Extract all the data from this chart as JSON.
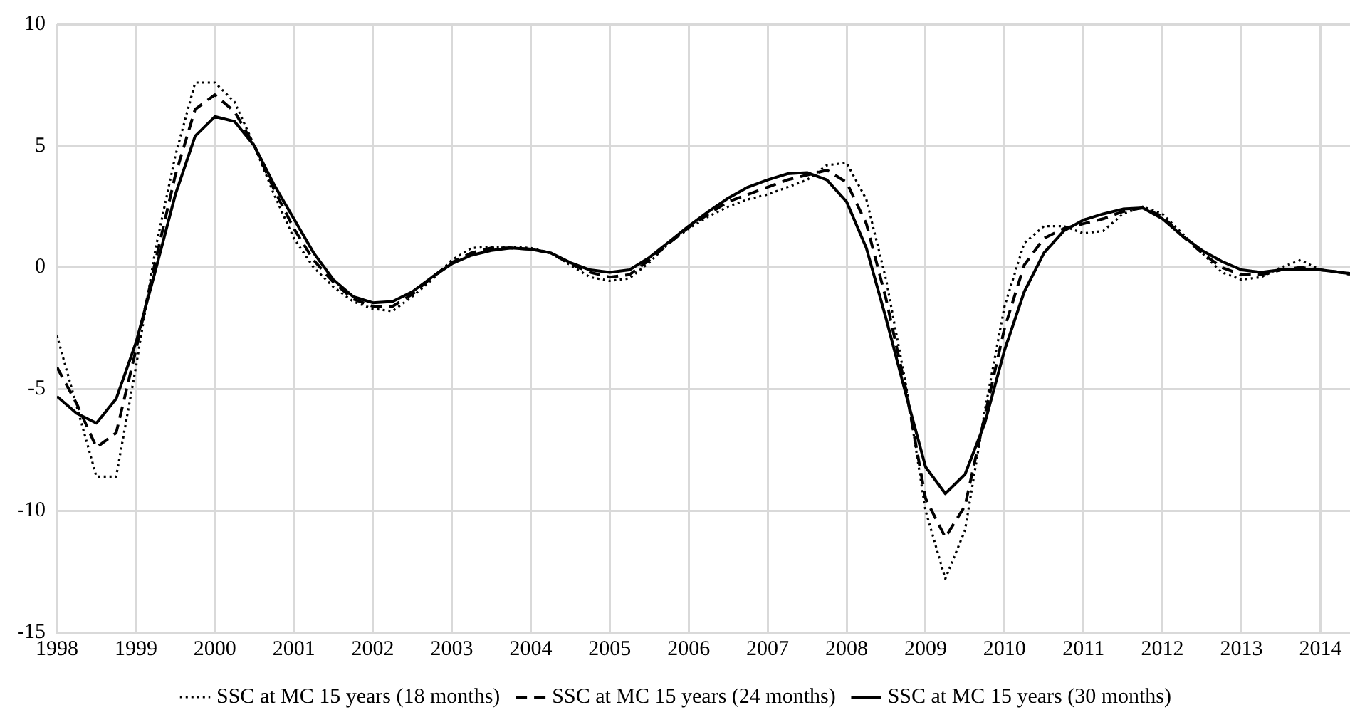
{
  "chart_data": {
    "type": "line",
    "x": [
      1998,
      1998.25,
      1998.5,
      1998.75,
      1999,
      1999.25,
      1999.5,
      1999.75,
      2000,
      2000.25,
      2000.5,
      2000.75,
      2001,
      2001.25,
      2001.5,
      2001.75,
      2002,
      2002.25,
      2002.5,
      2002.75,
      2003,
      2003.25,
      2003.5,
      2003.75,
      2004,
      2004.25,
      2004.5,
      2004.75,
      2005,
      2005.25,
      2005.5,
      2005.75,
      2006,
      2006.25,
      2006.5,
      2006.75,
      2007,
      2007.25,
      2007.5,
      2007.75,
      2008,
      2008.25,
      2008.5,
      2008.75,
      2009,
      2009.25,
      2009.5,
      2009.75,
      2010,
      2010.25,
      2010.5,
      2010.75,
      2011,
      2011.25,
      2011.5,
      2011.75,
      2012,
      2012.25,
      2012.5,
      2012.75,
      2013,
      2013.25,
      2013.5,
      2013.75,
      2014,
      2014.25,
      2014.375
    ],
    "series": [
      {
        "name": "SSC at MC 15 years (18 months)",
        "color": "#000000",
        "line_style": "dotted",
        "values": [
          -2.8,
          -5.7,
          -8.6,
          -8.6,
          -4.1,
          0.8,
          4.6,
          7.6,
          7.6,
          6.8,
          5.0,
          3.0,
          1.2,
          0.0,
          -0.8,
          -1.4,
          -1.7,
          -1.8,
          -1.2,
          -0.5,
          0.3,
          0.8,
          0.85,
          0.85,
          0.8,
          0.6,
          0.1,
          -0.4,
          -0.55,
          -0.45,
          0.2,
          1.0,
          1.6,
          2.1,
          2.5,
          2.8,
          3.0,
          3.3,
          3.6,
          4.2,
          4.3,
          2.8,
          -0.5,
          -4.8,
          -10.0,
          -12.8,
          -10.8,
          -5.9,
          -1.6,
          1.0,
          1.7,
          1.7,
          1.4,
          1.5,
          2.2,
          2.5,
          2.2,
          1.4,
          0.6,
          -0.2,
          -0.5,
          -0.4,
          0.0,
          0.3,
          -0.1,
          -0.2,
          -0.3
        ]
      },
      {
        "name": "SSC at MC 15 years (24 months)",
        "color": "#000000",
        "line_style": "dashed",
        "values": [
          -4.1,
          -5.6,
          -7.4,
          -6.8,
          -3.4,
          0.3,
          3.8,
          6.5,
          7.1,
          6.4,
          5.0,
          3.2,
          1.6,
          0.3,
          -0.6,
          -1.3,
          -1.6,
          -1.6,
          -1.1,
          -0.4,
          0.2,
          0.6,
          0.8,
          0.8,
          0.75,
          0.6,
          0.15,
          -0.2,
          -0.4,
          -0.3,
          0.3,
          1.0,
          1.65,
          2.2,
          2.7,
          3.0,
          3.3,
          3.6,
          3.8,
          4.0,
          3.5,
          1.8,
          -1.3,
          -5.0,
          -9.5,
          -11.1,
          -9.8,
          -6.1,
          -2.5,
          0.1,
          1.2,
          1.6,
          1.8,
          2.0,
          2.3,
          2.45,
          2.1,
          1.3,
          0.6,
          0.0,
          -0.3,
          -0.3,
          -0.1,
          0.0,
          -0.1,
          -0.2,
          -0.3
        ]
      },
      {
        "name": "SSC at MC 15 years (30 months)",
        "color": "#000000",
        "line_style": "solid",
        "values": [
          -5.3,
          -6.0,
          -6.4,
          -5.4,
          -3.1,
          -0.1,
          3.0,
          5.4,
          6.2,
          6.0,
          5.0,
          3.4,
          2.0,
          0.6,
          -0.5,
          -1.2,
          -1.45,
          -1.4,
          -1.0,
          -0.4,
          0.15,
          0.5,
          0.7,
          0.8,
          0.75,
          0.6,
          0.2,
          -0.1,
          -0.2,
          -0.1,
          0.4,
          1.05,
          1.7,
          2.3,
          2.85,
          3.3,
          3.6,
          3.85,
          3.9,
          3.6,
          2.7,
          0.8,
          -2.1,
          -5.2,
          -8.2,
          -9.3,
          -8.5,
          -6.4,
          -3.4,
          -1.0,
          0.6,
          1.5,
          1.95,
          2.2,
          2.4,
          2.45,
          2.0,
          1.3,
          0.7,
          0.25,
          -0.1,
          -0.2,
          -0.1,
          -0.1,
          -0.1,
          -0.2,
          -0.25
        ]
      }
    ],
    "xlim": [
      1998,
      2014.375
    ],
    "xticks": [
      1998,
      1999,
      2000,
      2001,
      2002,
      2003,
      2004,
      2005,
      2006,
      2007,
      2008,
      2009,
      2010,
      2011,
      2012,
      2013,
      2014
    ],
    "ylim": [
      -15,
      10
    ],
    "yticks": [
      -15,
      -10,
      -5,
      0,
      5,
      10
    ],
    "grid": true,
    "legend": "bottom",
    "marker": "none"
  }
}
